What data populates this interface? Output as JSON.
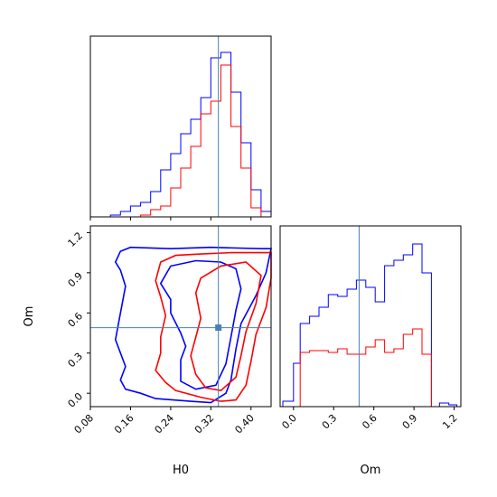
{
  "chart_data": {
    "type": "corner",
    "parameters": [
      "H0",
      "Om"
    ],
    "truth": {
      "H0": 0.335,
      "Om": 0.49
    },
    "truth_color": "#4682b4",
    "colors": {
      "blue": "#0000ff",
      "red": "#ff0000"
    },
    "axes": {
      "H0": {
        "label": "H0",
        "range": [
          0.08,
          0.44
        ],
        "ticks": [
          "0.08",
          "0.16",
          "0.24",
          "0.32",
          "0.40"
        ],
        "tick_values": [
          0.08,
          0.16,
          0.24,
          0.32,
          0.4
        ]
      },
      "Om": {
        "label": "Om",
        "range": [
          -0.1,
          1.25
        ],
        "ticks": [
          "0.0",
          "0.3",
          "0.6",
          "0.9",
          "1.2"
        ],
        "tick_values": [
          0.0,
          0.3,
          0.6,
          0.9,
          1.2
        ]
      }
    },
    "hist_h0": {
      "bin_edges": [
        0.12,
        0.14,
        0.16,
        0.18,
        0.2,
        0.22,
        0.24,
        0.26,
        0.28,
        0.3,
        0.32,
        0.34,
        0.36,
        0.38,
        0.4,
        0.42,
        0.44
      ],
      "blue": [
        0.01,
        0.03,
        0.06,
        0.08,
        0.14,
        0.26,
        0.35,
        0.46,
        0.54,
        0.66,
        0.88,
        0.91,
        0.69,
        0.41,
        0.15,
        0.03
      ],
      "red": [
        0.0,
        0.0,
        0.0,
        0.01,
        0.04,
        0.06,
        0.16,
        0.27,
        0.39,
        0.57,
        0.64,
        0.84,
        0.5,
        0.27,
        0.05,
        0.0
      ]
    },
    "hist_om": {
      "bin_edges": [
        -0.08,
        0.0,
        0.05,
        0.12,
        0.19,
        0.26,
        0.33,
        0.4,
        0.47,
        0.54,
        0.61,
        0.68,
        0.75,
        0.82,
        0.89,
        0.96,
        1.03,
        1.09,
        1.16,
        1.22
      ],
      "blue": [
        0.03,
        0.24,
        0.46,
        0.5,
        0.55,
        0.62,
        0.61,
        0.65,
        0.7,
        0.66,
        0.58,
        0.78,
        0.81,
        0.84,
        0.9,
        0.74,
        0.0,
        0.02,
        0.01
      ],
      "red": [
        0.0,
        0.0,
        0.3,
        0.31,
        0.31,
        0.3,
        0.32,
        0.29,
        0.29,
        0.33,
        0.37,
        0.3,
        0.32,
        0.4,
        0.43,
        0.29,
        0.0,
        0.0,
        0.0
      ]
    },
    "contours": {
      "blue_outer": [
        [
          0.13,
          0.98
        ],
        [
          0.14,
          1.06
        ],
        [
          0.16,
          1.09
        ],
        [
          0.24,
          1.08
        ],
        [
          0.32,
          1.09
        ],
        [
          0.42,
          1.08
        ],
        [
          0.44,
          1.08
        ],
        [
          0.43,
          0.9
        ],
        [
          0.41,
          0.73
        ],
        [
          0.38,
          0.52
        ],
        [
          0.37,
          0.33
        ],
        [
          0.36,
          0.1
        ],
        [
          0.35,
          0.0
        ],
        [
          0.32,
          -0.07
        ],
        [
          0.28,
          -0.06
        ],
        [
          0.21,
          -0.04
        ],
        [
          0.18,
          0.0
        ],
        [
          0.15,
          0.03
        ],
        [
          0.14,
          0.1
        ],
        [
          0.15,
          0.2
        ],
        [
          0.13,
          0.4
        ],
        [
          0.14,
          0.6
        ],
        [
          0.15,
          0.8
        ],
        [
          0.14,
          0.92
        ]
      ],
      "blue_inner": [
        [
          0.22,
          0.82
        ],
        [
          0.24,
          0.95
        ],
        [
          0.29,
          0.99
        ],
        [
          0.34,
          0.98
        ],
        [
          0.37,
          0.93
        ],
        [
          0.38,
          0.78
        ],
        [
          0.37,
          0.62
        ],
        [
          0.36,
          0.42
        ],
        [
          0.35,
          0.22
        ],
        [
          0.33,
          0.06
        ],
        [
          0.29,
          0.03
        ],
        [
          0.26,
          0.09
        ],
        [
          0.26,
          0.25
        ],
        [
          0.27,
          0.35
        ],
        [
          0.26,
          0.45
        ],
        [
          0.24,
          0.6
        ],
        [
          0.24,
          0.7
        ]
      ],
      "red_outer": [
        [
          0.22,
          0.98
        ],
        [
          0.25,
          1.03
        ],
        [
          0.3,
          1.04
        ],
        [
          0.36,
          1.05
        ],
        [
          0.44,
          1.05
        ],
        [
          0.44,
          0.86
        ],
        [
          0.43,
          0.64
        ],
        [
          0.41,
          0.44
        ],
        [
          0.4,
          0.24
        ],
        [
          0.39,
          0.06
        ],
        [
          0.37,
          -0.05
        ],
        [
          0.34,
          -0.06
        ],
        [
          0.3,
          -0.03
        ],
        [
          0.25,
          0.02
        ],
        [
          0.23,
          0.08
        ],
        [
          0.21,
          0.17
        ],
        [
          0.22,
          0.3
        ],
        [
          0.22,
          0.42
        ],
        [
          0.23,
          0.58
        ],
        [
          0.22,
          0.72
        ],
        [
          0.21,
          0.84
        ]
      ],
      "red_inner": [
        [
          0.29,
          0.75
        ],
        [
          0.3,
          0.86
        ],
        [
          0.34,
          0.95
        ],
        [
          0.39,
          0.98
        ],
        [
          0.42,
          0.88
        ],
        [
          0.41,
          0.67
        ],
        [
          0.39,
          0.46
        ],
        [
          0.38,
          0.28
        ],
        [
          0.37,
          0.12
        ],
        [
          0.34,
          0.02
        ],
        [
          0.31,
          0.04
        ],
        [
          0.29,
          0.14
        ],
        [
          0.28,
          0.28
        ],
        [
          0.29,
          0.42
        ],
        [
          0.3,
          0.56
        ]
      ]
    }
  }
}
